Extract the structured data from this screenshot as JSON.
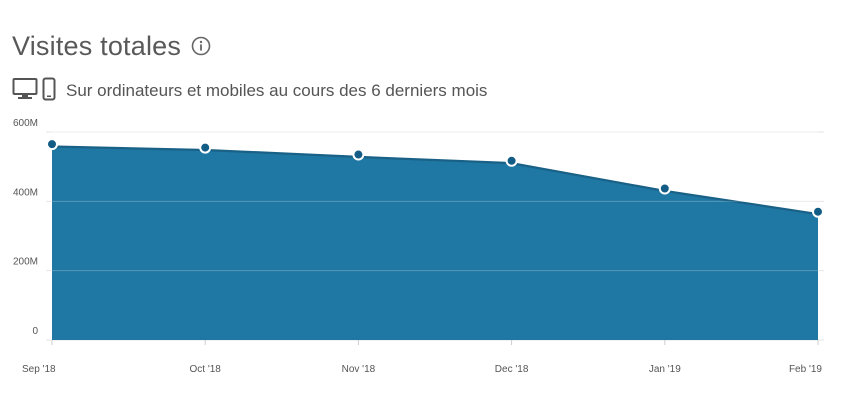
{
  "header": {
    "title": "Visites totales",
    "subtitle": "Sur ordinateurs et mobiles au cours des 6 derniers mois",
    "info_icon": "info-circle-icon",
    "device_icons": [
      "desktop-icon",
      "mobile-phone-icon"
    ]
  },
  "colors": {
    "area_fill": "#1f77a4",
    "line": "#ffffff",
    "point_fill": "#125c85",
    "grid": "#e6e6e6"
  },
  "chart_data": {
    "type": "area",
    "title": "Visites totales",
    "subtitle": "Sur ordinateurs et mobiles au cours des 6 derniers mois",
    "categories": [
      "Sep '18",
      "Oct '18",
      "Nov '18",
      "Dec '18",
      "Jan '19",
      "Feb '19"
    ],
    "series": [
      {
        "values": [
          565,
          555,
          535,
          517,
          437,
          370
        ]
      }
    ],
    "y_unit": "M",
    "ylim": [
      0,
      600
    ],
    "y_ticks": [
      0,
      200,
      400,
      600
    ],
    "y_tick_labels": [
      "0",
      "200M",
      "400M",
      "600M"
    ],
    "grid": true,
    "legend": "none"
  }
}
